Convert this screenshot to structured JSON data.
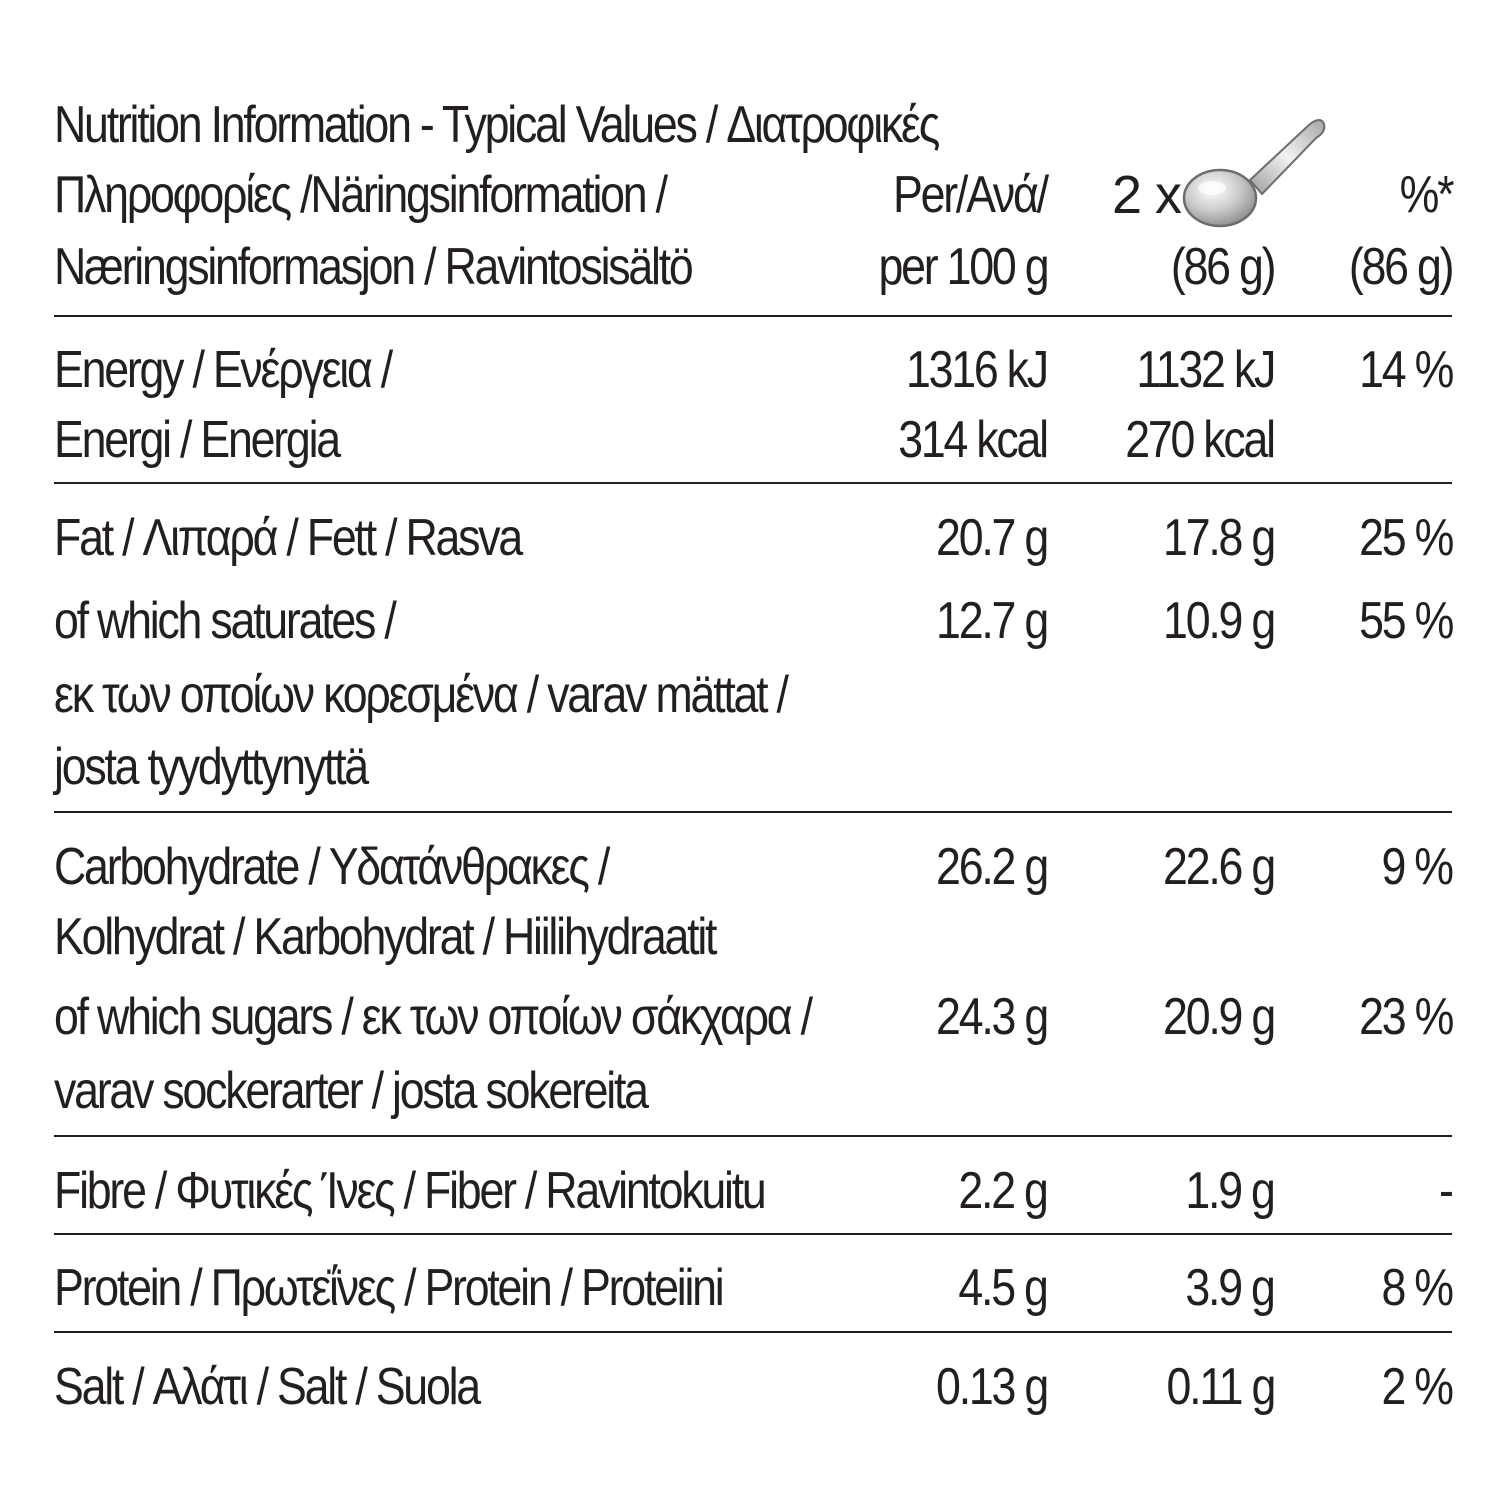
{
  "header": {
    "title_line1": "Nutrition Information - Typical Values / Διατροφικές",
    "title_line2": "Πληροφορίες /Näringsinformation /",
    "title_line3": "Næringsinformasjon / Ravintosisältö",
    "col1_line1": "Per/Ανά/",
    "col1_line2": "per 100 g",
    "col2_prefix": "2 x",
    "col2_icon": "spoon-icon",
    "col2_line2": "(86 g)",
    "col3_line1": "%*",
    "col3_line2": "(86 g)"
  },
  "rows": {
    "energy": {
      "label1": "Energy / Ενέργεια /",
      "label2": "Energi / Energia",
      "per100_kj": "1316 kJ",
      "per100_kcal": "314 kcal",
      "serving_kj": "1132 kJ",
      "serving_kcal": "270 kcal",
      "pct": "14 %"
    },
    "fat": {
      "label": "Fat / Λιπαρά / Fett / Rasva",
      "per100": "20.7 g",
      "serving": "17.8 g",
      "pct": "25 %"
    },
    "saturates": {
      "label1": "of which saturates /",
      "label2": "εκ των οποίων κορεσμένα / varav mättat /",
      "label3": "josta tyydyttynyttä",
      "per100": "12.7 g",
      "serving": "10.9 g",
      "pct": "55 %"
    },
    "carbohydrate": {
      "label1": "Carbohydrate / Υδατάνθρακες /",
      "label2": "Kolhydrat / Karbohydrat / Hiilihydraatit",
      "per100": "26.2 g",
      "serving": "22.6 g",
      "pct": "9 %"
    },
    "sugars": {
      "label1": "of which sugars / εκ των οποίων σάκχαρα /",
      "label2": "varav sockerarter / josta sokereita",
      "per100": "24.3 g",
      "serving": "20.9 g",
      "pct": "23 %"
    },
    "fibre": {
      "label": "Fibre / Φυτικές Ίνες / Fiber / Ravintokuitu",
      "per100": "2.2 g",
      "serving": "1.9 g",
      "pct": "-"
    },
    "protein": {
      "label": "Protein / Πρωτεΐνες / Protein / Proteiini",
      "per100": "4.5 g",
      "serving": "3.9 g",
      "pct": "8 %"
    },
    "salt": {
      "label": "Salt / Αλάτι / Salt / Suola",
      "per100": "0.13 g",
      "serving": "0.11 g",
      "pct": "2 %"
    }
  }
}
